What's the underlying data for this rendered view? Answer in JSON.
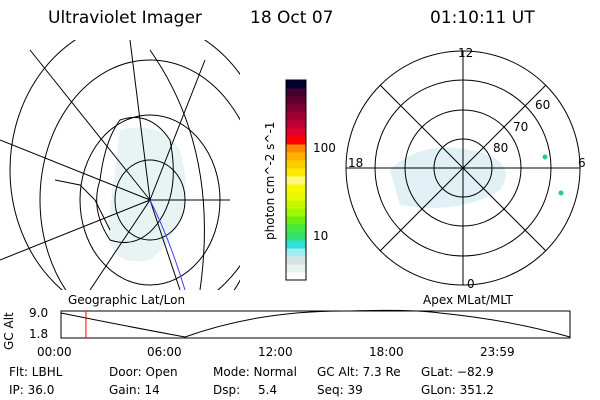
{
  "header": {
    "title": "Ultraviolet Imager",
    "date": "18 Oct 07",
    "time": "01:10:11 UT"
  },
  "left_map": {
    "label": "Geographic Lat/Lon"
  },
  "right_map": {
    "label": "Apex MLat/MLT",
    "mlt_labels": [
      "12",
      "18",
      "6",
      "0"
    ],
    "lat_labels": [
      "60",
      "70",
      "80"
    ]
  },
  "colorbar": {
    "label": "photon cm^-2 s^-1",
    "ticks": [
      "100",
      "10"
    ],
    "colors": [
      "#ffffff",
      "#e8f4ee",
      "#d4e4e4",
      "#a0ecf4",
      "#30e0d8",
      "#30e070",
      "#48e840",
      "#68f010",
      "#a0f800",
      "#c8f800",
      "#e8f800",
      "#f8f800",
      "#fff880",
      "#ffe800",
      "#ffcc00",
      "#ffb000",
      "#ff8800",
      "#ff0000",
      "#e00030",
      "#c00030",
      "#a00030",
      "#800030",
      "#600030",
      "#400030",
      "#000030"
    ]
  },
  "altitude_plot": {
    "ylabel": "GC Alt",
    "y_ticks": [
      "9.0",
      "1.8"
    ],
    "x_ticks": [
      "00:00",
      "06:00",
      "12:00",
      "18:00",
      "23:59"
    ],
    "current_time_fraction": 0.049,
    "marker_color": "#ff0000"
  },
  "info": {
    "flt": "Flt: LBHL",
    "ip": "IP: 36.0",
    "door": "Door: Open",
    "gain": "Gain: 14",
    "mode": "Mode: Normal",
    "dsp_label": "Dsp:",
    "dsp": "5.4",
    "gcalt": "GC Alt: 7.3 Re",
    "seq": "Seq: 39",
    "glat": "GLat: −82.9",
    "glon": "GLon: 351.2"
  }
}
